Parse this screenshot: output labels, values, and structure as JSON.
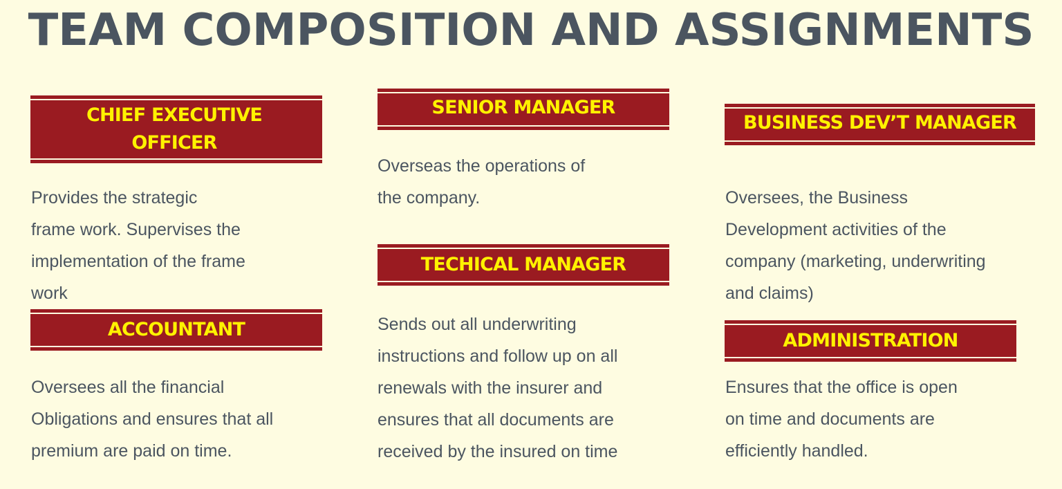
{
  "title": "TEAM COMPOSITION AND ASSIGNMENTS",
  "roles": {
    "ceo": {
      "heading": "CHIEF EXECUTIVE\nOFFICER",
      "description": "Provides the strategic\nframe work. Supervises the\nimplementation of the frame\nwork"
    },
    "senior_manager": {
      "heading": "SENIOR MANAGER",
      "description": "Overseas the operations of\nthe company."
    },
    "business_dev_manager": {
      "heading": "BUSINESS DEV’T MANAGER",
      "description": "Oversees, the Business\nDevelopment activities of the\ncompany (marketing, underwriting\nand claims)"
    },
    "accountant": {
      "heading": "ACCOUNTANT",
      "description": "Oversees all the financial\nObligations and ensures that all\npremium are paid on time."
    },
    "technical_manager": {
      "heading": "TECHICAL MANAGER",
      "description": "Sends out all underwriting\ninstructions and follow up on all\nrenewals with the insurer and\nensures that all documents are\nreceived by the insured on time"
    },
    "administration": {
      "heading": "ADMINISTRATION",
      "description": "Ensures that the office is open\non time and documents are\nefficiently handled."
    }
  },
  "colors": {
    "background": "#fefce1",
    "banner": "#9a1b21",
    "banner_text": "#fff200",
    "body_text": "#4b5560"
  }
}
